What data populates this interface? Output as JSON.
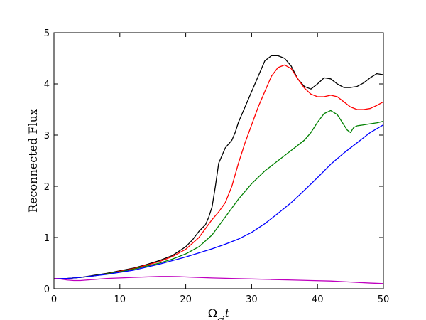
{
  "chart_data": {
    "type": "line",
    "xlabel": "Ω_ci t",
    "ylabel": "Reconnected Flux",
    "xlim": [
      0,
      50
    ],
    "ylim": [
      0,
      5
    ],
    "xticks": [
      0,
      10,
      20,
      30,
      40,
      50
    ],
    "yticks": [
      0,
      1,
      2,
      3,
      4,
      5
    ],
    "grid": false,
    "legend": "none",
    "series": [
      {
        "color": "#000000",
        "x": [
          0,
          2,
          4,
          6,
          8,
          10,
          12,
          14,
          16,
          18,
          20,
          21,
          22,
          23,
          23.5,
          24,
          24.5,
          25,
          26,
          27,
          27.5,
          28,
          29,
          30,
          31,
          32,
          33,
          34,
          35,
          36,
          37,
          38,
          39,
          40,
          41,
          42,
          43,
          44,
          45,
          46,
          47,
          48,
          49,
          50
        ],
        "y": [
          0.2,
          0.2,
          0.22,
          0.26,
          0.3,
          0.35,
          0.4,
          0.47,
          0.55,
          0.65,
          0.82,
          0.95,
          1.12,
          1.25,
          1.4,
          1.6,
          2.0,
          2.45,
          2.75,
          2.9,
          3.05,
          3.25,
          3.55,
          3.85,
          4.15,
          4.45,
          4.55,
          4.55,
          4.5,
          4.35,
          4.1,
          3.95,
          3.9,
          4.0,
          4.12,
          4.1,
          4.0,
          3.93,
          3.93,
          3.95,
          4.02,
          4.12,
          4.2,
          4.18
        ]
      },
      {
        "color": "#ff0000",
        "x": [
          0,
          2,
          4,
          6,
          8,
          10,
          12,
          14,
          16,
          18,
          20,
          22,
          24,
          25,
          26,
          27,
          28,
          29,
          30,
          31,
          32,
          33,
          34,
          35,
          36,
          37,
          38,
          39,
          40,
          41,
          42,
          43,
          44,
          45,
          46,
          47,
          48,
          49,
          50
        ],
        "y": [
          0.2,
          0.2,
          0.22,
          0.25,
          0.29,
          0.34,
          0.39,
          0.46,
          0.53,
          0.63,
          0.77,
          1.0,
          1.35,
          1.5,
          1.68,
          2.0,
          2.45,
          2.85,
          3.2,
          3.55,
          3.85,
          4.15,
          4.32,
          4.37,
          4.3,
          4.1,
          3.92,
          3.8,
          3.75,
          3.75,
          3.78,
          3.75,
          3.65,
          3.55,
          3.5,
          3.5,
          3.52,
          3.58,
          3.65
        ]
      },
      {
        "color": "#008000",
        "x": [
          0,
          2,
          4,
          6,
          8,
          10,
          12,
          14,
          16,
          18,
          20,
          22,
          24,
          26,
          28,
          30,
          32,
          34,
          36,
          38,
          39,
          40,
          41,
          42,
          43,
          44,
          44.5,
          45,
          45.5,
          46,
          47,
          48,
          49,
          50
        ],
        "y": [
          0.2,
          0.2,
          0.22,
          0.25,
          0.29,
          0.33,
          0.38,
          0.44,
          0.5,
          0.58,
          0.68,
          0.82,
          1.05,
          1.4,
          1.75,
          2.05,
          2.3,
          2.5,
          2.7,
          2.9,
          3.05,
          3.25,
          3.42,
          3.48,
          3.4,
          3.2,
          3.1,
          3.05,
          3.15,
          3.18,
          3.2,
          3.22,
          3.24,
          3.27
        ]
      },
      {
        "color": "#0000ff",
        "x": [
          0,
          2,
          4,
          6,
          8,
          10,
          12,
          14,
          16,
          18,
          20,
          22,
          24,
          26,
          28,
          30,
          32,
          34,
          36,
          38,
          40,
          42,
          44,
          46,
          48,
          50
        ],
        "y": [
          0.2,
          0.2,
          0.22,
          0.25,
          0.28,
          0.32,
          0.36,
          0.42,
          0.48,
          0.55,
          0.62,
          0.7,
          0.78,
          0.87,
          0.97,
          1.1,
          1.27,
          1.47,
          1.68,
          1.92,
          2.17,
          2.43,
          2.65,
          2.85,
          3.05,
          3.2
        ]
      },
      {
        "color": "#bf00bf",
        "x": [
          0,
          1,
          2,
          3,
          4,
          6,
          8,
          10,
          12,
          14,
          16,
          17.5,
          19,
          21,
          24,
          27,
          30,
          33,
          36,
          39,
          42,
          45,
          48,
          50
        ],
        "y": [
          0.2,
          0.19,
          0.17,
          0.16,
          0.16,
          0.18,
          0.2,
          0.21,
          0.22,
          0.23,
          0.24,
          0.24,
          0.235,
          0.225,
          0.21,
          0.2,
          0.19,
          0.18,
          0.17,
          0.16,
          0.15,
          0.13,
          0.11,
          0.1
        ]
      }
    ]
  }
}
